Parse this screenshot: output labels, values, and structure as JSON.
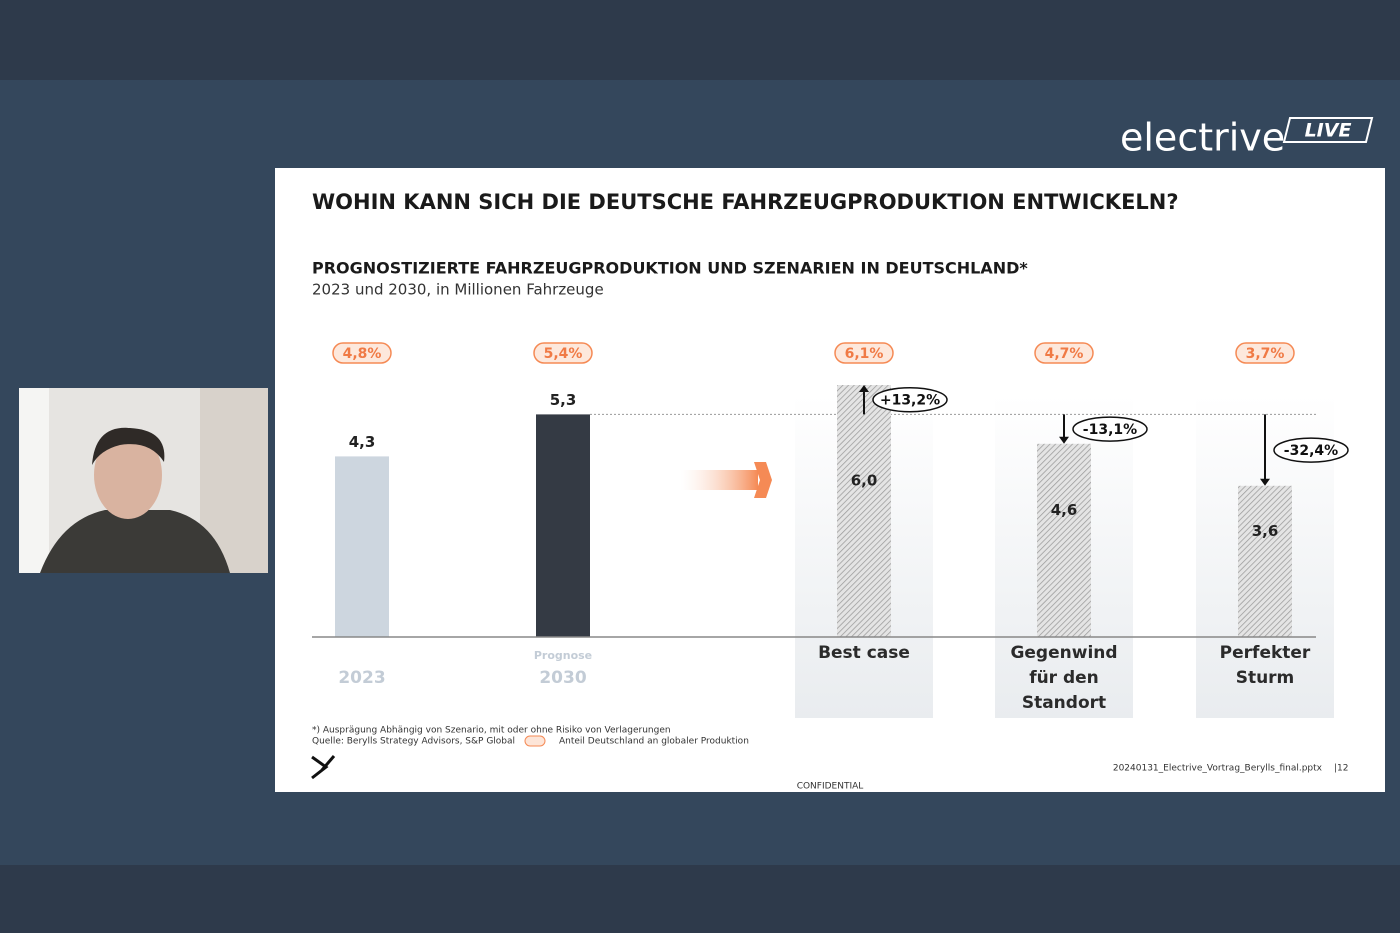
{
  "stream": {
    "brand": "electrive",
    "badge": "LIVE"
  },
  "slide": {
    "title": "WOHIN KANN SICH DIE DEUTSCHE FAHRZEUGPRODUKTION ENTWICKELN?",
    "footnote": "*) Ausprägung Abhängig von Szenario, mit oder ohne Risiko von Verlagerungen",
    "source": "Quelle: Berylls Strategy Advisors, S&P Global",
    "legend": "Anteil Deutschland an globaler Produktion",
    "file": "20240131_Electrive_Vortrag_Berylls_final.pptx",
    "page": "|12",
    "confidential": "CONFIDENTIAL"
  },
  "chart_data": {
    "type": "bar",
    "title": "PROGNOSTIZIERTE FAHRZEUGPRODUKTION UND SZENARIEN IN DEUTSCHLAND*",
    "subtitle": "2023 und 2030, in Millionen Fahrzeuge",
    "categories": [
      "2023",
      "2030",
      "Best case",
      "Gegenwind für den Standort",
      "Perfekter Sturm"
    ],
    "category_notes": [
      null,
      "Prognose",
      null,
      null,
      null
    ],
    "values": [
      4.3,
      5.3,
      6.0,
      4.6,
      3.6
    ],
    "value_labels": [
      "4,3",
      "5,3",
      "6,0",
      "4,6",
      "3,6"
    ],
    "colors": [
      "#cdd6df",
      "#343a44",
      "#c9c9c9",
      "#c9c9c9",
      "#c9c9c9"
    ],
    "hatched": [
      false,
      false,
      true,
      true,
      true
    ],
    "shares": [
      4.8,
      5.4,
      6.1,
      4.7,
      3.7
    ],
    "share_labels": [
      "4,8%",
      "5,4%",
      "6,1%",
      "4,7%",
      "3,7%"
    ],
    "changes": [
      null,
      null,
      13.2,
      -13.1,
      -32.4
    ],
    "change_labels": [
      null,
      null,
      "+13,2%",
      "-13,1%",
      "-32,4%"
    ]
  }
}
